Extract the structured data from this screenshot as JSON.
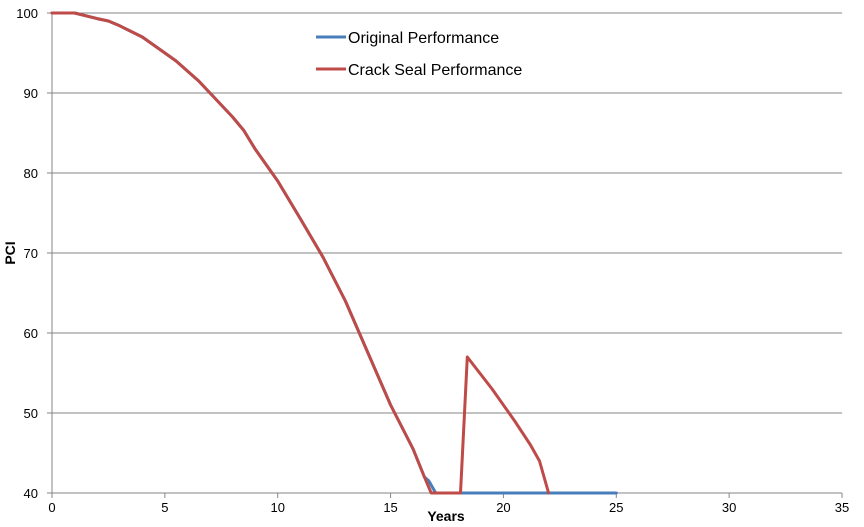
{
  "chart_data": {
    "type": "line",
    "title": "",
    "xlabel": "Years",
    "ylabel": "PCI",
    "xlim": [
      0,
      35
    ],
    "ylim": [
      40,
      100
    ],
    "x_ticks": [
      0,
      5,
      10,
      15,
      20,
      25,
      30,
      35
    ],
    "y_ticks": [
      40,
      50,
      60,
      70,
      80,
      90,
      100
    ],
    "grid": "horizontal",
    "legend_position": "top-center",
    "series": [
      {
        "name": "Original Performance",
        "color": "#4a7ebb",
        "x": [
          0,
          1,
          2,
          2.5,
          3,
          4,
          5,
          5.5,
          6.5,
          7,
          8,
          8.5,
          9,
          10,
          11,
          12,
          13,
          14,
          15,
          16,
          16.5,
          16.7,
          17,
          18,
          20,
          22,
          25
        ],
        "y": [
          100,
          100,
          99.3,
          99,
          98.4,
          97,
          95,
          94,
          91.5,
          90,
          87,
          85.3,
          83,
          79,
          74.3,
          69.5,
          64,
          57.5,
          51,
          45.5,
          42,
          41.5,
          40,
          40,
          40,
          40,
          40
        ]
      },
      {
        "name": "Crack Seal Performance",
        "color": "#be4b48",
        "x": [
          0,
          1,
          2,
          2.5,
          3,
          4,
          5,
          5.5,
          6.5,
          7,
          8,
          8.5,
          9,
          10,
          11,
          12,
          13,
          14,
          15,
          16,
          16.5,
          16.8,
          18.1,
          18.4,
          19.5,
          20.5,
          21.2,
          21.6,
          22
        ],
        "y": [
          100,
          100,
          99.3,
          99,
          98.4,
          97,
          95,
          94,
          91.5,
          90,
          87,
          85.3,
          83,
          79,
          74.3,
          69.5,
          64,
          57.5,
          51,
          45.5,
          42,
          40,
          40,
          57,
          53,
          49,
          46,
          44,
          40
        ]
      }
    ]
  }
}
